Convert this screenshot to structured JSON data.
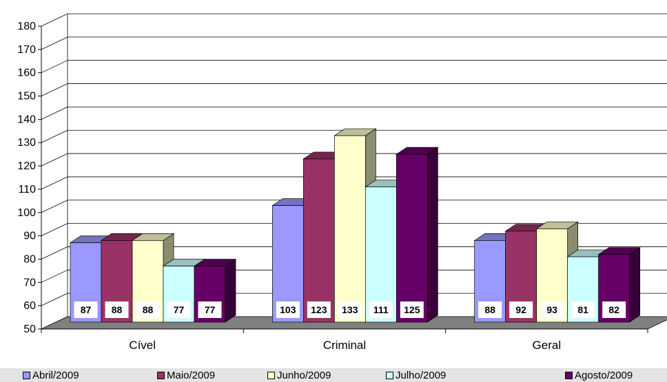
{
  "chart_data": {
    "type": "bar",
    "categories": [
      "Cível",
      "Criminal",
      "Geral"
    ],
    "series": [
      {
        "name": "Abril/2009",
        "color": "#9999ff",
        "values": [
          87,
          103,
          88
        ]
      },
      {
        "name": "Maio/2009",
        "color": "#993366",
        "values": [
          88,
          123,
          92
        ]
      },
      {
        "name": "Junho/2009",
        "color": "#ffffcc",
        "values": [
          88,
          133,
          93
        ]
      },
      {
        "name": "Julho/2009",
        "color": "#ccffff",
        "values": [
          77,
          111,
          81
        ]
      },
      {
        "name": "Agosto/2009",
        "color": "#660066",
        "values": [
          77,
          125,
          82
        ]
      }
    ],
    "ylim": [
      50,
      180
    ],
    "yticks": [
      50,
      60,
      70,
      80,
      90,
      100,
      110,
      120,
      130,
      140,
      150,
      160,
      170,
      180
    ],
    "three_d": true,
    "grid": true,
    "legend_position": "bottom",
    "floor_color": "#808080"
  }
}
